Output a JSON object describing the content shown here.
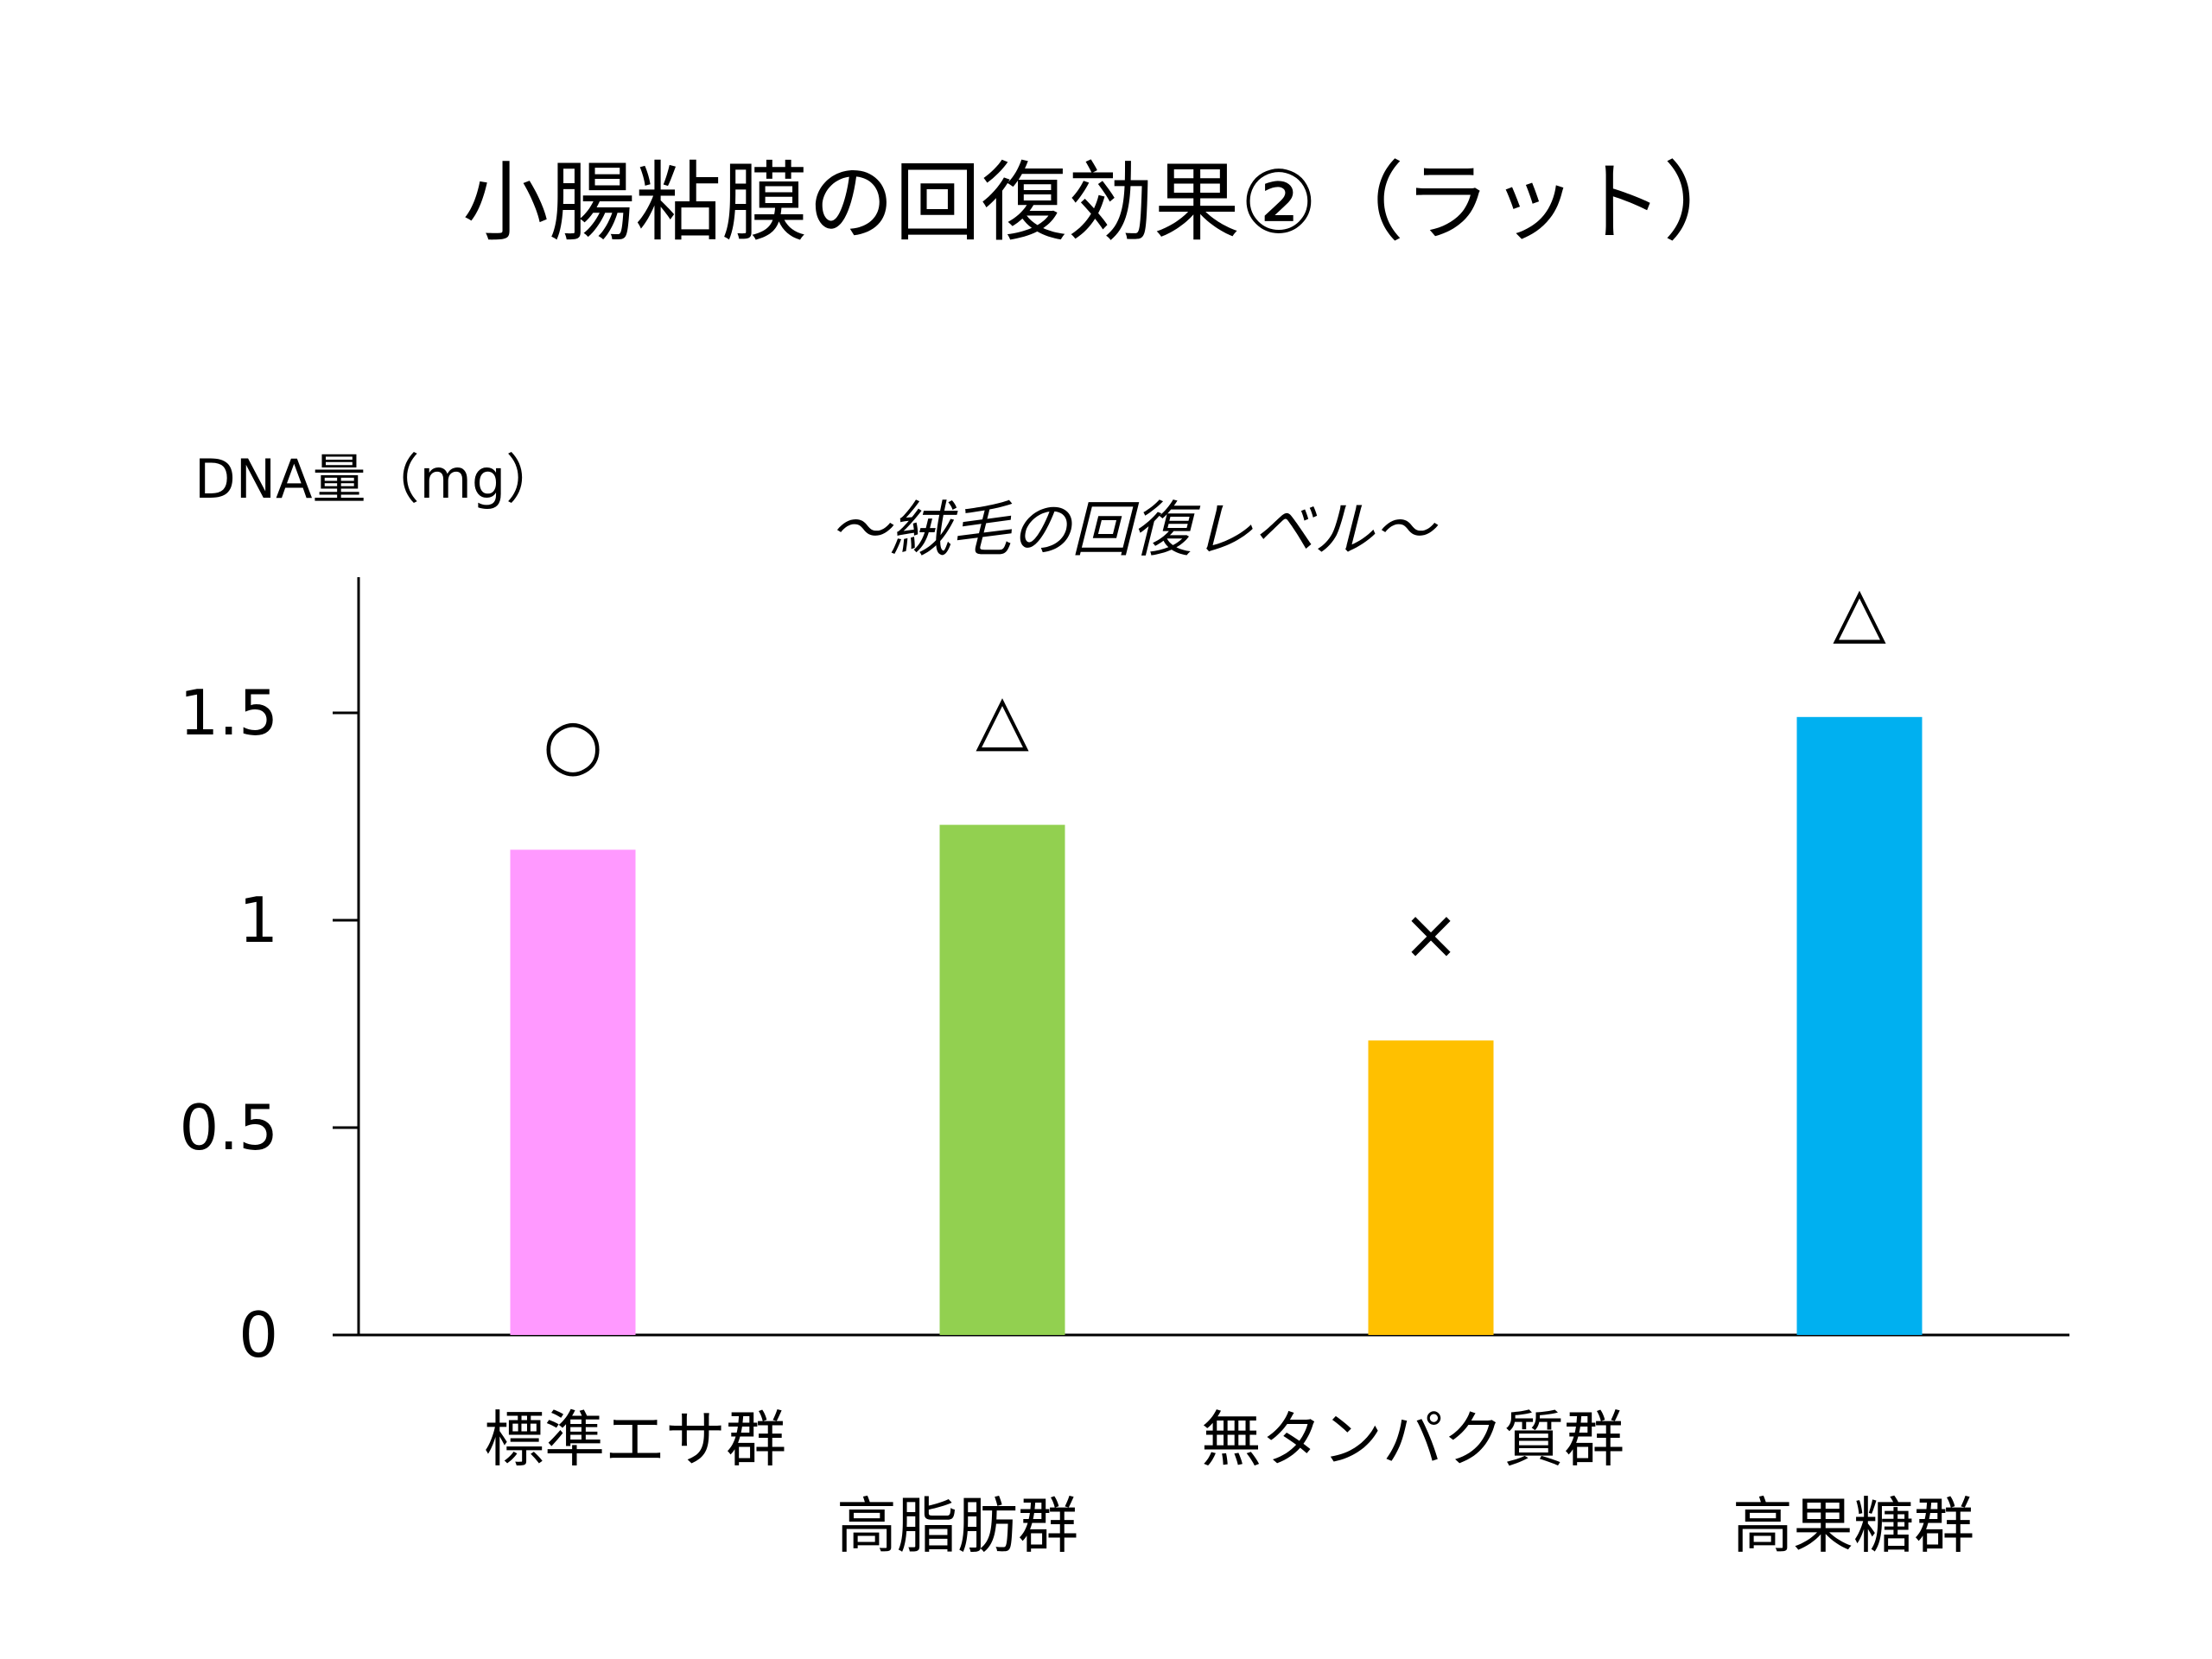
{
  "chart_data": {
    "type": "bar",
    "title": "小腸粘膜の回復効果②（ラット）",
    "subtitle": "～絨毛の回復レベル～",
    "xlabel": "",
    "ylabel": "DNA量（mg）",
    "ylim": [
      0,
      1.8
    ],
    "yticks": [
      0,
      0.5,
      1,
      1.5
    ],
    "ytick_labels": [
      "0",
      "0.5",
      "1",
      "1.5"
    ],
    "grid": false,
    "categories": [
      "標準エサ群",
      "高脂肪群",
      "無タンパク質群",
      "高果糖群"
    ],
    "values": [
      1.17,
      1.23,
      0.71,
      1.49
    ],
    "colors": [
      "#FF99FF",
      "#92D050",
      "#FFC000",
      "#00B0F0"
    ],
    "annotations": [
      "○",
      "△",
      "×",
      "△"
    ]
  }
}
